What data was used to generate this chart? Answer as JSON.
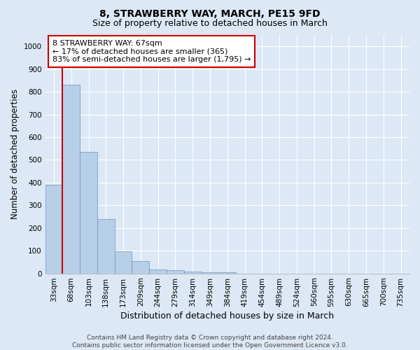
{
  "title": "8, STRAWBERRY WAY, MARCH, PE15 9FD",
  "subtitle": "Size of property relative to detached houses in March",
  "xlabel": "Distribution of detached houses by size in March",
  "ylabel": "Number of detached properties",
  "bar_color": "#b8cfe8",
  "bar_edge_color": "#7090c0",
  "highlight_index": 1,
  "categories": [
    "33sqm",
    "68sqm",
    "103sqm",
    "138sqm",
    "173sqm",
    "209sqm",
    "244sqm",
    "279sqm",
    "314sqm",
    "349sqm",
    "384sqm",
    "419sqm",
    "454sqm",
    "489sqm",
    "524sqm",
    "560sqm",
    "595sqm",
    "630sqm",
    "665sqm",
    "700sqm",
    "735sqm"
  ],
  "values": [
    390,
    830,
    535,
    240,
    96,
    53,
    18,
    13,
    8,
    5,
    5,
    0,
    0,
    0,
    0,
    0,
    0,
    0,
    0,
    0,
    0
  ],
  "ylim": [
    0,
    1050
  ],
  "yticks": [
    0,
    100,
    200,
    300,
    400,
    500,
    600,
    700,
    800,
    900,
    1000
  ],
  "annotation_text": "8 STRAWBERRY WAY: 67sqm\n← 17% of detached houses are smaller (365)\n83% of semi-detached houses are larger (1,795) →",
  "annotation_box_color": "#ffffff",
  "annotation_border_color": "#cc0000",
  "red_line_color": "#cc0000",
  "footer_line1": "Contains HM Land Registry data © Crown copyright and database right 2024.",
  "footer_line2": "Contains public sector information licensed under the Open Government Licence v3.0.",
  "background_color": "#dce8f5",
  "plot_background_color": "#dce8f5",
  "grid_color": "#ffffff",
  "title_fontsize": 10,
  "subtitle_fontsize": 9,
  "axis_label_fontsize": 8.5,
  "tick_fontsize": 7.5,
  "annotation_fontsize": 8,
  "footer_fontsize": 6.5
}
